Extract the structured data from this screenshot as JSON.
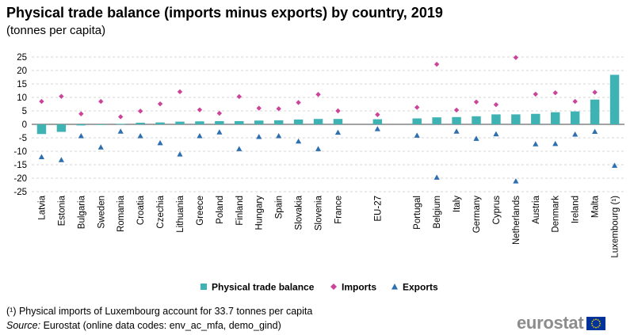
{
  "title": "Physical trade balance (imports minus exports) by country, 2019",
  "subtitle": "(tonnes per capita)",
  "footnote": "(¹) Physical imports of Luxembourg account for 33.7 tonnes per capita",
  "source": {
    "label": "Source:",
    "text": " Eurostat (online data codes: env_ac_mfa, demo_gind)"
  },
  "logo": {
    "text": "eurostat"
  },
  "colors": {
    "balance": "#3fb3b3",
    "imports": "#cc4499",
    "exports": "#2e6fb0",
    "flag": "#003399",
    "flag_stars": "#ffcc00"
  },
  "chart_data": {
    "type": "bar",
    "categories": [
      "Latvia",
      "Estonia",
      "Bulgaria",
      "Sweden",
      "Romania",
      "Croatia",
      "Czechia",
      "Lithuania",
      "Greece",
      "Poland",
      "Finland",
      "Hungary",
      "Spain",
      "Slovakia",
      "Slovenia",
      "France",
      "",
      "EU-27",
      "",
      "Portugal",
      "Belgium",
      "Italy",
      "Germany",
      "Cyprus",
      "Netherlands",
      "Austria",
      "Denmark",
      "Ireland",
      "Malta",
      "Luxembourg (¹)"
    ],
    "series": [
      {
        "name": "Physical trade balance",
        "mark": "bar",
        "values": [
          -3.6,
          -2.8,
          -0.4,
          -0.1,
          0.2,
          0.6,
          0.7,
          1.0,
          1.1,
          1.2,
          1.2,
          1.4,
          1.5,
          1.8,
          2.0,
          2.0,
          null,
          1.9,
          null,
          2.2,
          2.6,
          2.7,
          3.0,
          3.7,
          3.7,
          3.9,
          4.5,
          4.8,
          9.2,
          18.4
        ]
      },
      {
        "name": "Imports",
        "mark": "diamond",
        "values": [
          8.5,
          10.4,
          3.9,
          8.5,
          2.8,
          4.9,
          7.6,
          12.1,
          5.4,
          4.1,
          10.3,
          6.0,
          5.8,
          8.1,
          11.1,
          5.0,
          null,
          3.6,
          null,
          6.3,
          22.3,
          5.3,
          8.3,
          7.3,
          24.8,
          11.2,
          11.7,
          8.5,
          11.9,
          null
        ]
      },
      {
        "name": "Exports",
        "mark": "triangle",
        "values": [
          -12.1,
          -13.2,
          -4.3,
          -8.5,
          -2.6,
          -4.3,
          -6.9,
          -11.1,
          -4.3,
          -2.9,
          -9.1,
          -4.6,
          -4.3,
          -6.3,
          -9.1,
          -3.0,
          null,
          -1.7,
          null,
          -4.1,
          -19.7,
          -2.6,
          -5.3,
          -3.6,
          -21.1,
          -7.3,
          -7.2,
          -3.7,
          -2.7,
          -15.3
        ]
      }
    ],
    "xlabel": "",
    "ylabel": "",
    "ylim": [
      -25,
      25
    ],
    "yticks": [
      -25,
      -20,
      -15,
      -10,
      -5,
      0,
      5,
      10,
      15,
      20,
      25
    ],
    "grid": "horizontal dashed",
    "legend_position": "bottom"
  }
}
